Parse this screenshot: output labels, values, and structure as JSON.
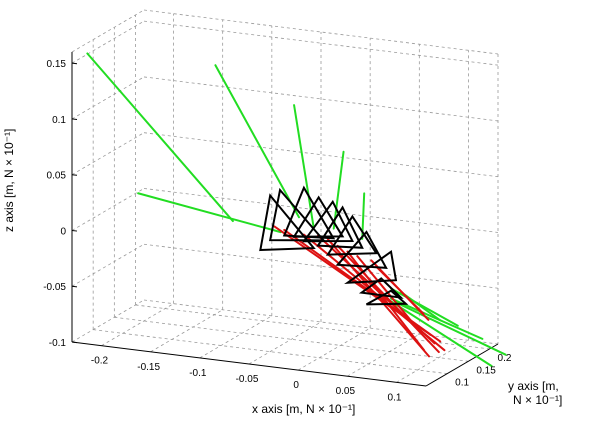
{
  "chart_data": {
    "type": "line3d",
    "grid": true,
    "axes": {
      "x": {
        "label": "x axis [m, N × 10⁻¹]",
        "ticks": [
          "-0.2",
          "-0.15",
          "-0.1",
          "-0.05",
          "0",
          "0.05",
          "0.1"
        ]
      },
      "y": {
        "label_lines": [
          "y axis [m,",
          "N × 10⁻¹]"
        ],
        "ticks": [
          "0.1",
          "0.15",
          "0.2"
        ]
      },
      "z": {
        "label": "z axis [m, N × 10⁻¹]",
        "ticks": [
          "0.15",
          "0.1",
          "0.05",
          "0",
          "-0.05",
          "-0.1"
        ]
      }
    },
    "series": [
      {
        "role": "green force vectors",
        "color": "#22dd22",
        "segments": [
          [
            [
              -0.075,
              0.07,
              0.021
            ],
            [
              -0.223,
              0.07,
              0.155
            ]
          ],
          [
            [
              -0.025,
              0.11,
              0.021
            ],
            [
              -0.11,
              0.11,
              0.148
            ]
          ],
          [
            [
              -0.01,
              0.11,
              0.013
            ],
            [
              -0.03,
              0.11,
              0.121
            ]
          ],
          [
            [
              -0.035,
              0.09,
              0.011
            ],
            [
              -0.18,
              0.09,
              0.03
            ]
          ],
          [
            [
              0.006,
              0.12,
              0.012
            ],
            [
              0.016,
              0.12,
              0.082
            ]
          ],
          [
            [
              0.035,
              0.12,
              0.006
            ],
            [
              0.037,
              0.12,
              0.047
            ]
          ],
          [
            [
              0.07,
              0.13,
              -0.04
            ],
            [
              0.11,
              0.13,
              -0.061
            ]
          ],
          [
            [
              0.06,
              0.13,
              -0.038
            ],
            [
              0.115,
              0.16,
              -0.072
            ]
          ],
          [
            [
              0.06,
              0.13,
              -0.047
            ],
            [
              0.14,
              0.16,
              -0.081
            ]
          ],
          [
            [
              0.065,
              0.13,
              -0.05
            ],
            [
              0.155,
              0.18,
              -0.098
            ]
          ],
          [
            [
              0.05,
              0.13,
              -0.045
            ],
            [
              0.145,
              0.17,
              -0.107
            ]
          ]
        ]
      },
      {
        "role": "red vectors",
        "color": "#dd1111",
        "segments": [
          [
            [
              -0.05,
              0.11,
              0.01
            ],
            [
              0.1,
              0.13,
              -0.075
            ]
          ],
          [
            [
              -0.04,
              0.11,
              0.008
            ],
            [
              0.11,
              0.13,
              -0.08
            ]
          ],
          [
            [
              -0.02,
              0.11,
              0.006
            ],
            [
              0.11,
              0.14,
              -0.09
            ]
          ],
          [
            [
              -0.01,
              0.12,
              0.004
            ],
            [
              0.1,
              0.14,
              -0.085
            ]
          ],
          [
            [
              0.0,
              0.12,
              0.002
            ],
            [
              0.09,
              0.15,
              -0.1
            ]
          ],
          [
            [
              0.01,
              0.12,
              -0.003
            ],
            [
              0.1,
              0.15,
              -0.095
            ]
          ],
          [
            [
              0.02,
              0.12,
              -0.007
            ],
            [
              0.085,
              0.15,
              -0.095
            ]
          ],
          [
            [
              0.03,
              0.12,
              -0.01
            ],
            [
              0.075,
              0.16,
              -0.08
            ]
          ],
          [
            [
              0.04,
              0.13,
              -0.015
            ],
            [
              0.085,
              0.16,
              -0.07
            ]
          ],
          [
            [
              0.045,
              0.13,
              -0.02
            ],
            [
              0.08,
              0.16,
              -0.065
            ]
          ]
        ]
      },
      {
        "role": "black triangles",
        "color": "#000000",
        "triangles": [
          [
            [
              -0.06,
              0.1,
              -0.01
            ],
            [
              -0.01,
              0.11,
              -0.005
            ],
            [
              -0.05,
              0.1,
              0.04
            ]
          ],
          [
            [
              -0.05,
              0.1,
              0.0
            ],
            [
              0.0,
              0.11,
              0.003
            ],
            [
              -0.04,
              0.1,
              0.046
            ]
          ],
          [
            [
              -0.04,
              0.11,
              0.003
            ],
            [
              0.01,
              0.11,
              0.006
            ],
            [
              -0.02,
              0.11,
              0.048
            ]
          ],
          [
            [
              -0.03,
              0.11,
              0.003
            ],
            [
              0.015,
              0.12,
              0.006
            ],
            [
              -0.005,
              0.11,
              0.041
            ]
          ],
          [
            [
              -0.02,
              0.11,
              0.0
            ],
            [
              0.025,
              0.12,
              0.003
            ],
            [
              0.005,
              0.12,
              0.036
            ]
          ],
          [
            [
              -0.01,
              0.12,
              -0.005
            ],
            [
              0.035,
              0.12,
              -0.002
            ],
            [
              0.015,
              0.12,
              0.032
            ]
          ],
          [
            [
              0.0,
              0.12,
              -0.012
            ],
            [
              0.045,
              0.13,
              -0.008
            ],
            [
              0.025,
              0.12,
              0.025
            ]
          ],
          [
            [
              0.01,
              0.12,
              -0.02
            ],
            [
              0.055,
              0.13,
              -0.02
            ],
            [
              0.035,
              0.13,
              0.01
            ]
          ],
          [
            [
              0.02,
              0.12,
              -0.035
            ],
            [
              0.065,
              0.13,
              -0.03
            ],
            [
              0.06,
              0.13,
              -0.005
            ]
          ],
          [
            [
              0.03,
              0.13,
              -0.045
            ],
            [
              0.07,
              0.13,
              -0.045
            ],
            [
              0.05,
              0.13,
              -0.03
            ]
          ],
          [
            [
              0.035,
              0.13,
              -0.055
            ],
            [
              0.075,
              0.13,
              -0.05
            ],
            [
              0.06,
              0.13,
              -0.04
            ]
          ]
        ]
      }
    ]
  }
}
